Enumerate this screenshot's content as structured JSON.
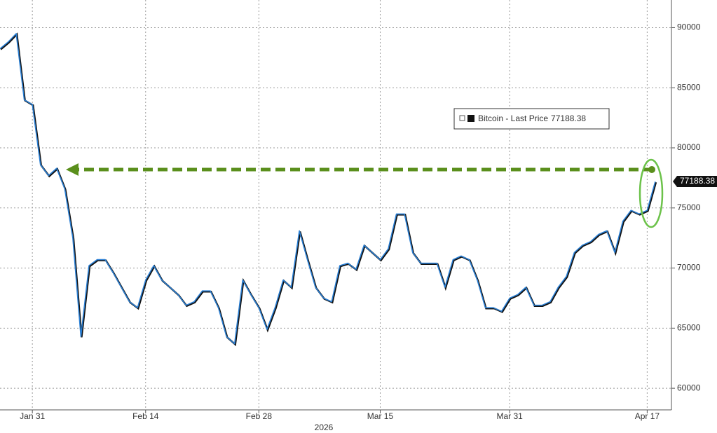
{
  "chart_data": {
    "type": "line",
    "xlabel": "2026",
    "x": [
      "2026-01-27",
      "2026-01-28",
      "2026-01-29",
      "2026-01-30",
      "2026-01-31",
      "2026-02-01",
      "2026-02-02",
      "2026-02-03",
      "2026-02-04",
      "2026-02-05",
      "2026-02-06",
      "2026-02-07",
      "2026-02-08",
      "2026-02-09",
      "2026-02-10",
      "2026-02-11",
      "2026-02-12",
      "2026-02-13",
      "2026-02-14",
      "2026-02-15",
      "2026-02-16",
      "2026-02-17",
      "2026-02-18",
      "2026-02-19",
      "2026-02-20",
      "2026-02-21",
      "2026-02-22",
      "2026-02-23",
      "2026-02-24",
      "2026-02-25",
      "2026-02-26",
      "2026-02-27",
      "2026-02-28",
      "2026-03-01",
      "2026-03-02",
      "2026-03-03",
      "2026-03-04",
      "2026-03-05",
      "2026-03-06",
      "2026-03-07",
      "2026-03-08",
      "2026-03-09",
      "2026-03-10",
      "2026-03-11",
      "2026-03-12",
      "2026-03-13",
      "2026-03-14",
      "2026-03-15",
      "2026-03-16",
      "2026-03-17",
      "2026-03-18",
      "2026-03-19",
      "2026-03-20",
      "2026-03-21",
      "2026-03-22",
      "2026-03-23",
      "2026-03-24",
      "2026-03-25",
      "2026-03-26",
      "2026-03-27",
      "2026-03-28",
      "2026-03-29",
      "2026-03-30",
      "2026-03-31",
      "2026-04-01",
      "2026-04-02",
      "2026-04-03",
      "2026-04-04",
      "2026-04-05",
      "2026-04-06",
      "2026-04-07",
      "2026-04-08",
      "2026-04-09",
      "2026-04-10",
      "2026-04-11",
      "2026-04-12",
      "2026-04-13",
      "2026-04-14",
      "2026-04-15",
      "2026-04-16",
      "2026-04-17",
      "2026-04-18"
    ],
    "series": [
      {
        "name": "Bitcoin - Last Price",
        "color": "#2a7fd4",
        "values": [
          88250,
          88800,
          89500,
          84000,
          83600,
          78600,
          77700,
          78300,
          76600,
          72500,
          64300,
          70200,
          70700,
          70700,
          69600,
          68400,
          67200,
          66700,
          69000,
          70200,
          69000,
          68400,
          67800,
          66900,
          67200,
          68100,
          68100,
          66700,
          64300,
          63700,
          69000,
          67800,
          66700,
          64900,
          66700,
          69000,
          68400,
          73100,
          70700,
          68400,
          67500,
          67200,
          70200,
          70400,
          69900,
          71900,
          71300,
          70700,
          71600,
          74500,
          74500,
          71300,
          70400,
          70400,
          70400,
          68400,
          70700,
          71000,
          70700,
          69000,
          66700,
          66700,
          66400,
          67500,
          67800,
          68400,
          66900,
          66900,
          67200,
          68400,
          69300,
          71300,
          71900,
          72200,
          72800,
          73100,
          71300,
          73900,
          74800,
          74500,
          74800,
          77188.38
        ]
      }
    ],
    "xlim": [
      "2026-01-27",
      "2026-04-20"
    ],
    "xticks": [
      {
        "value": "2026-01-31",
        "label": "Jan 31"
      },
      {
        "value": "2026-02-14",
        "label": "Feb 14"
      },
      {
        "value": "2026-02-28",
        "label": "Feb 28"
      },
      {
        "value": "2026-03-15",
        "label": "Mar 15"
      },
      {
        "value": "2026-03-31",
        "label": "Mar 31"
      },
      {
        "value": "2026-04-17",
        "label": "Apr 17"
      }
    ],
    "ylim": [
      58200,
      92300
    ],
    "yticks": [
      60000,
      65000,
      70000,
      75000,
      80000,
      85000,
      90000
    ],
    "grid": true
  }
}
